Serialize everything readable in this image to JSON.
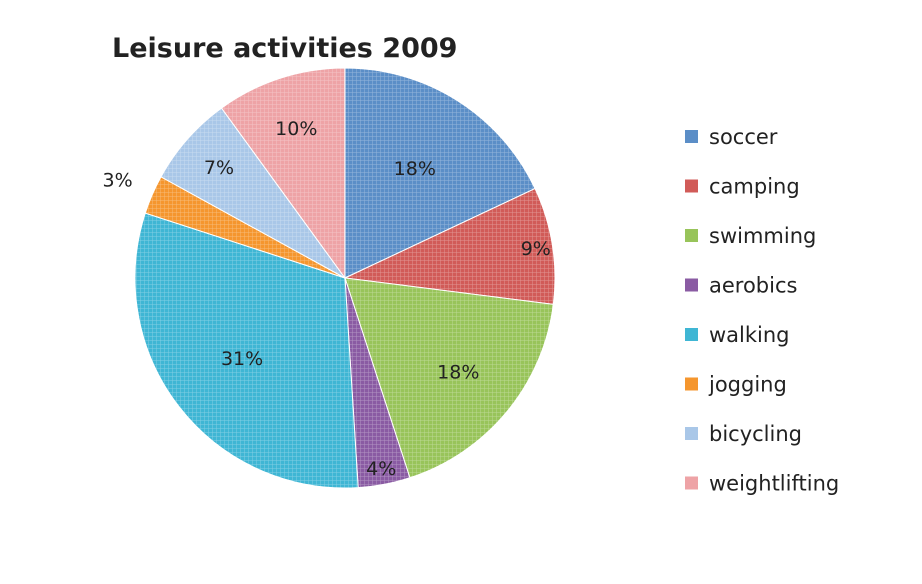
{
  "chart_data": {
    "type": "pie",
    "title": "Leisure activities 2009",
    "categories": [
      "soccer",
      "camping",
      "swimming",
      "aerobics",
      "walking",
      "jogging",
      "bicycling",
      "weightlifting"
    ],
    "values": [
      18,
      9,
      18,
      4,
      31,
      3,
      7,
      10
    ],
    "labels": [
      "18%",
      "9%",
      "18%",
      "4%",
      "31%",
      "3%",
      "7%",
      "10%"
    ],
    "colors": [
      "#5b8ec7",
      "#d15b58",
      "#98c45a",
      "#8a5ba3",
      "#3fb6d4",
      "#f5962e",
      "#a9c7e8",
      "#eea3a6"
    ],
    "start": "12 o'clock, clockwise",
    "legend": "right"
  }
}
